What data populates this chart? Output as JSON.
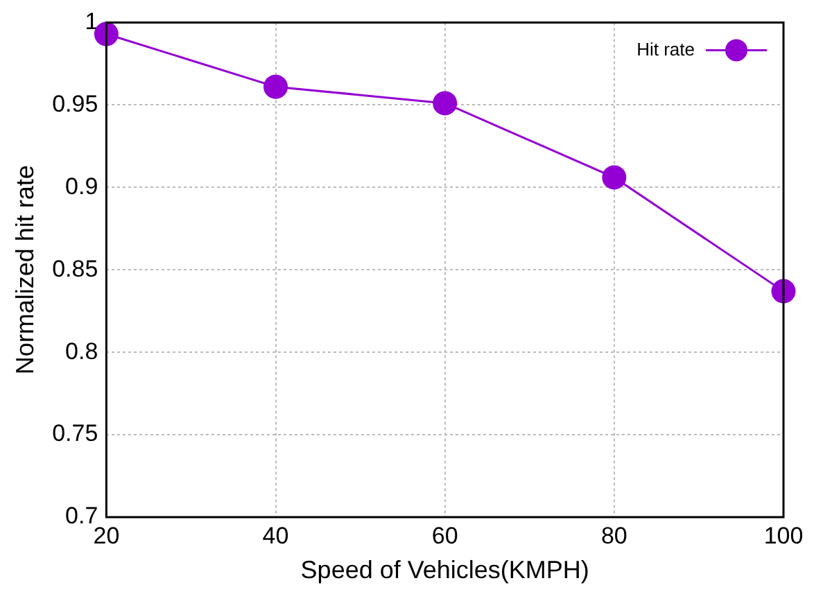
{
  "chart_data": {
    "type": "line",
    "xlabel": "Speed of Vehicles(KMPH)",
    "ylabel": "Normalized hit rate",
    "x": [
      20,
      40,
      60,
      80,
      100
    ],
    "series": [
      {
        "name": "Hit rate",
        "color": "#9400d3",
        "values": [
          0.993,
          0.961,
          0.951,
          0.906,
          0.837
        ]
      }
    ],
    "xlim": [
      20,
      100
    ],
    "xticks": [
      20,
      40,
      60,
      80,
      100
    ],
    "ylim": [
      0.7,
      1
    ],
    "yticks": [
      0.7,
      0.75,
      0.8,
      0.85,
      0.9,
      0.95,
      1
    ],
    "grid": true,
    "legend": "top right",
    "marker": "circle",
    "line_style": "solid"
  }
}
